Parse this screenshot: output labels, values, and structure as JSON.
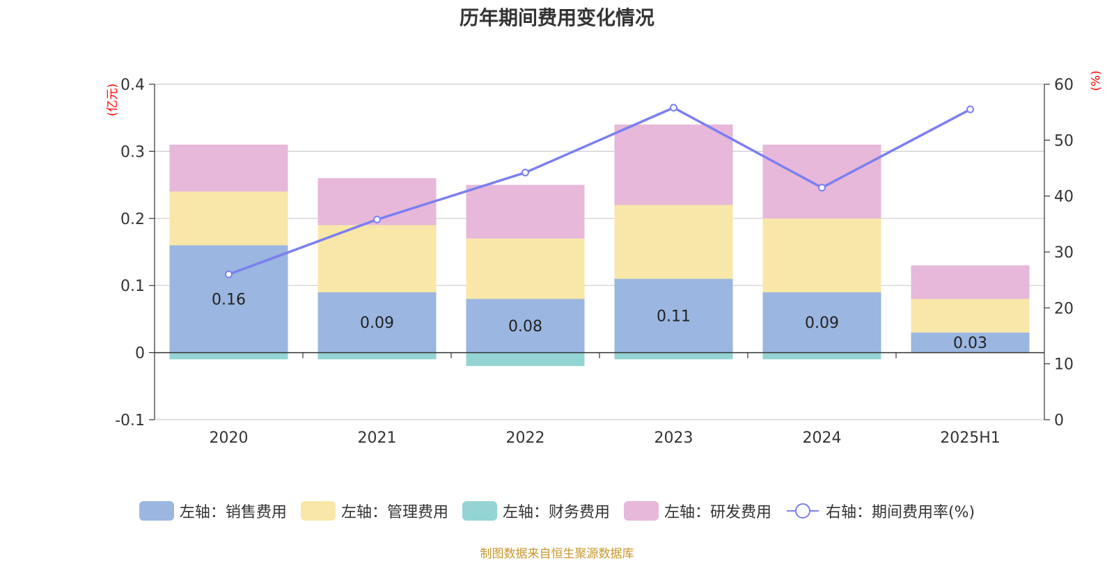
{
  "chart_data": {
    "type": "bar",
    "title": "历年期间费用变化情况",
    "categories": [
      "2020",
      "2021",
      "2022",
      "2023",
      "2024",
      "2025H1"
    ],
    "series": [
      {
        "name": "左轴：销售费用",
        "axis": "left",
        "color": "#9bb6e0",
        "values": [
          0.16,
          0.09,
          0.08,
          0.11,
          0.09,
          0.03
        ],
        "data_labels": [
          "0.16",
          "0.09",
          "0.08",
          "0.11",
          "0.09",
          "0.03"
        ]
      },
      {
        "name": "左轴：管理费用",
        "axis": "left",
        "color": "#f8e7a8",
        "values": [
          0.08,
          0.1,
          0.09,
          0.11,
          0.11,
          0.05
        ]
      },
      {
        "name": "左轴：财务费用",
        "axis": "left",
        "color": "#94d4d4",
        "values": [
          -0.01,
          -0.01,
          -0.02,
          -0.01,
          -0.01,
          0.0
        ]
      },
      {
        "name": "左轴：研发费用",
        "axis": "left",
        "color": "#e7b8d9",
        "values": [
          0.07,
          0.07,
          0.08,
          0.12,
          0.11,
          0.05
        ]
      },
      {
        "name": "右轴：期间费用率(%)",
        "axis": "right",
        "type": "line",
        "color": "#7b7ff0",
        "values": [
          26.0,
          35.8,
          44.2,
          55.8,
          41.5,
          55.5
        ]
      }
    ],
    "left_axis": {
      "unit": "(亿元)",
      "ylim": [
        -0.1,
        0.4
      ],
      "ticks": [
        "-0.1",
        "0",
        "0.1",
        "0.2",
        "0.3",
        "0.4"
      ]
    },
    "right_axis": {
      "unit": "(%)",
      "ylim": [
        0,
        60
      ],
      "ticks": [
        "0",
        "10",
        "20",
        "30",
        "40",
        "50",
        "60"
      ]
    },
    "grid": true,
    "legend_position": "bottom"
  },
  "source": "制图数据来自恒生聚源数据库"
}
